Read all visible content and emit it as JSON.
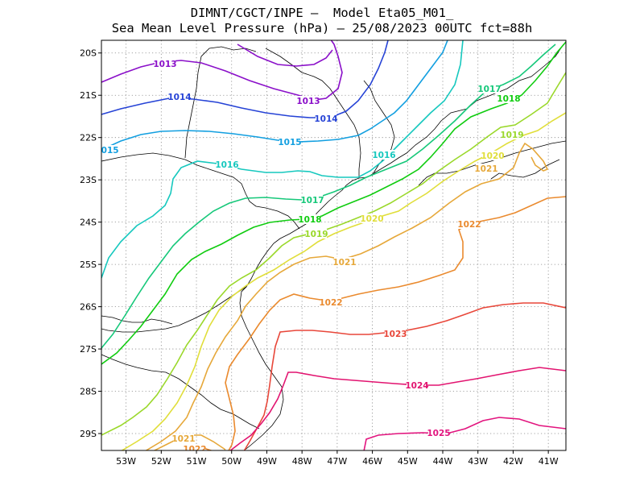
{
  "title_line1": "DIMNT/CGCT/INPE –  Model Eta05_M01_",
  "title_line2": "Sea Mean Level Pressure (hPa) – 25/08/2023 00UTC fct=88h",
  "lon_ticks": [
    "53W",
    "52W",
    "51W",
    "50W",
    "49W",
    "48W",
    "47W",
    "46W",
    "45W",
    "44W",
    "43W",
    "42W",
    "41W"
  ],
  "lat_ticks": [
    "20S",
    "21S",
    "22S",
    "23S",
    "24S",
    "25S",
    "26S",
    "27S",
    "28S",
    "29S"
  ],
  "lon_range": [
    -53.7,
    -40.5
  ],
  "lat_range": [
    -29.4,
    -19.7
  ],
  "contours": [
    {
      "level": "1013",
      "color": "#8a0fc9"
    },
    {
      "level": "1014",
      "color": "#2643d6"
    },
    {
      "level": "1015",
      "color": "#129fe0"
    },
    {
      "level": "1016",
      "color": "#16c8be"
    },
    {
      "level": "1017",
      "color": "#16c87a"
    },
    {
      "level": "1018",
      "color": "#10cc10"
    },
    {
      "level": "1019",
      "color": "#9ad82a"
    },
    {
      "level": "1020",
      "color": "#e0de3a"
    },
    {
      "level": "1021",
      "color": "#e6a83a"
    },
    {
      "level": "1022",
      "color": "#ea8a2e"
    },
    {
      "level": "1023",
      "color": "#e8473a"
    },
    {
      "level": "1024",
      "color": "#e21470"
    },
    {
      "level": "1025",
      "color": "#e2147e"
    }
  ]
}
